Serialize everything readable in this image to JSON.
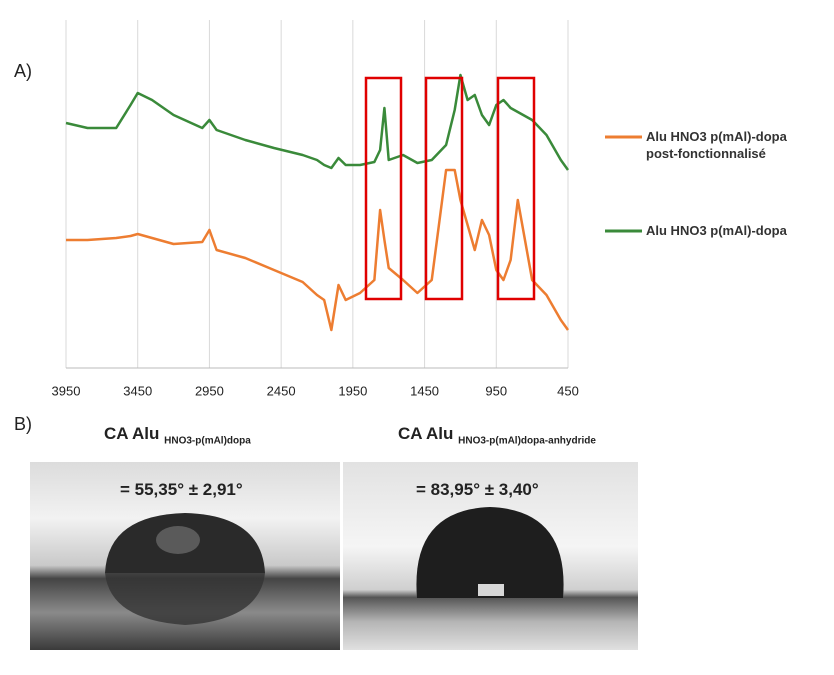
{
  "chart_data": {
    "type": "line",
    "panel_label": "A)",
    "x": [
      3950,
      3800,
      3600,
      3500,
      3450,
      3350,
      3200,
      3000,
      2950,
      2900,
      2700,
      2500,
      2300,
      2200,
      2150,
      2100,
      2050,
      2000,
      1900,
      1800,
      1760,
      1730,
      1700,
      1600,
      1500,
      1400,
      1300,
      1240,
      1200,
      1150,
      1100,
      1050,
      1000,
      950,
      900,
      850,
      800,
      750,
      700,
      600,
      500,
      450
    ],
    "series": [
      {
        "name": "Alu HNO3 p(mAl)-dopa post-fonctionnalisé",
        "color": "#ed7d31",
        "values": [
          128,
          128,
          130,
          132,
          134,
          130,
          124,
          126,
          138,
          118,
          110,
          98,
          86,
          73,
          68,
          38,
          83,
          68,
          75,
          88,
          158,
          128,
          100,
          88,
          75,
          88,
          198,
          198,
          168,
          143,
          118,
          148,
          133,
          98,
          88,
          108,
          168,
          128,
          88,
          73,
          48,
          38
        ]
      },
      {
        "name": "Alu HNO3 p(mAl)-dopa",
        "color": "#3a8a3a",
        "values": [
          245,
          240,
          240,
          263,
          275,
          268,
          253,
          240,
          248,
          238,
          228,
          220,
          213,
          208,
          203,
          200,
          210,
          203,
          203,
          206,
          218,
          260,
          208,
          213,
          205,
          208,
          223,
          258,
          293,
          268,
          273,
          253,
          243,
          263,
          268,
          260,
          256,
          252,
          248,
          233,
          208,
          198
        ]
      }
    ],
    "xlim": [
      3950,
      450
    ],
    "xticks": [
      3950,
      3450,
      2950,
      2450,
      1950,
      1450,
      950,
      450
    ],
    "ylim": [
      0,
      348
    ],
    "grid": true
  },
  "panel_b": {
    "label": "B)",
    "images": [
      {
        "title": "CA Alu",
        "subscript": "HNO3-p(mAl)dopa",
        "result": "= 55,35° ± 2,91°"
      },
      {
        "title": "CA Alu",
        "subscript": "HNO3-p(mAl)dopa-anhydride",
        "result": "= 83,95° ± 3,40°"
      }
    ]
  }
}
